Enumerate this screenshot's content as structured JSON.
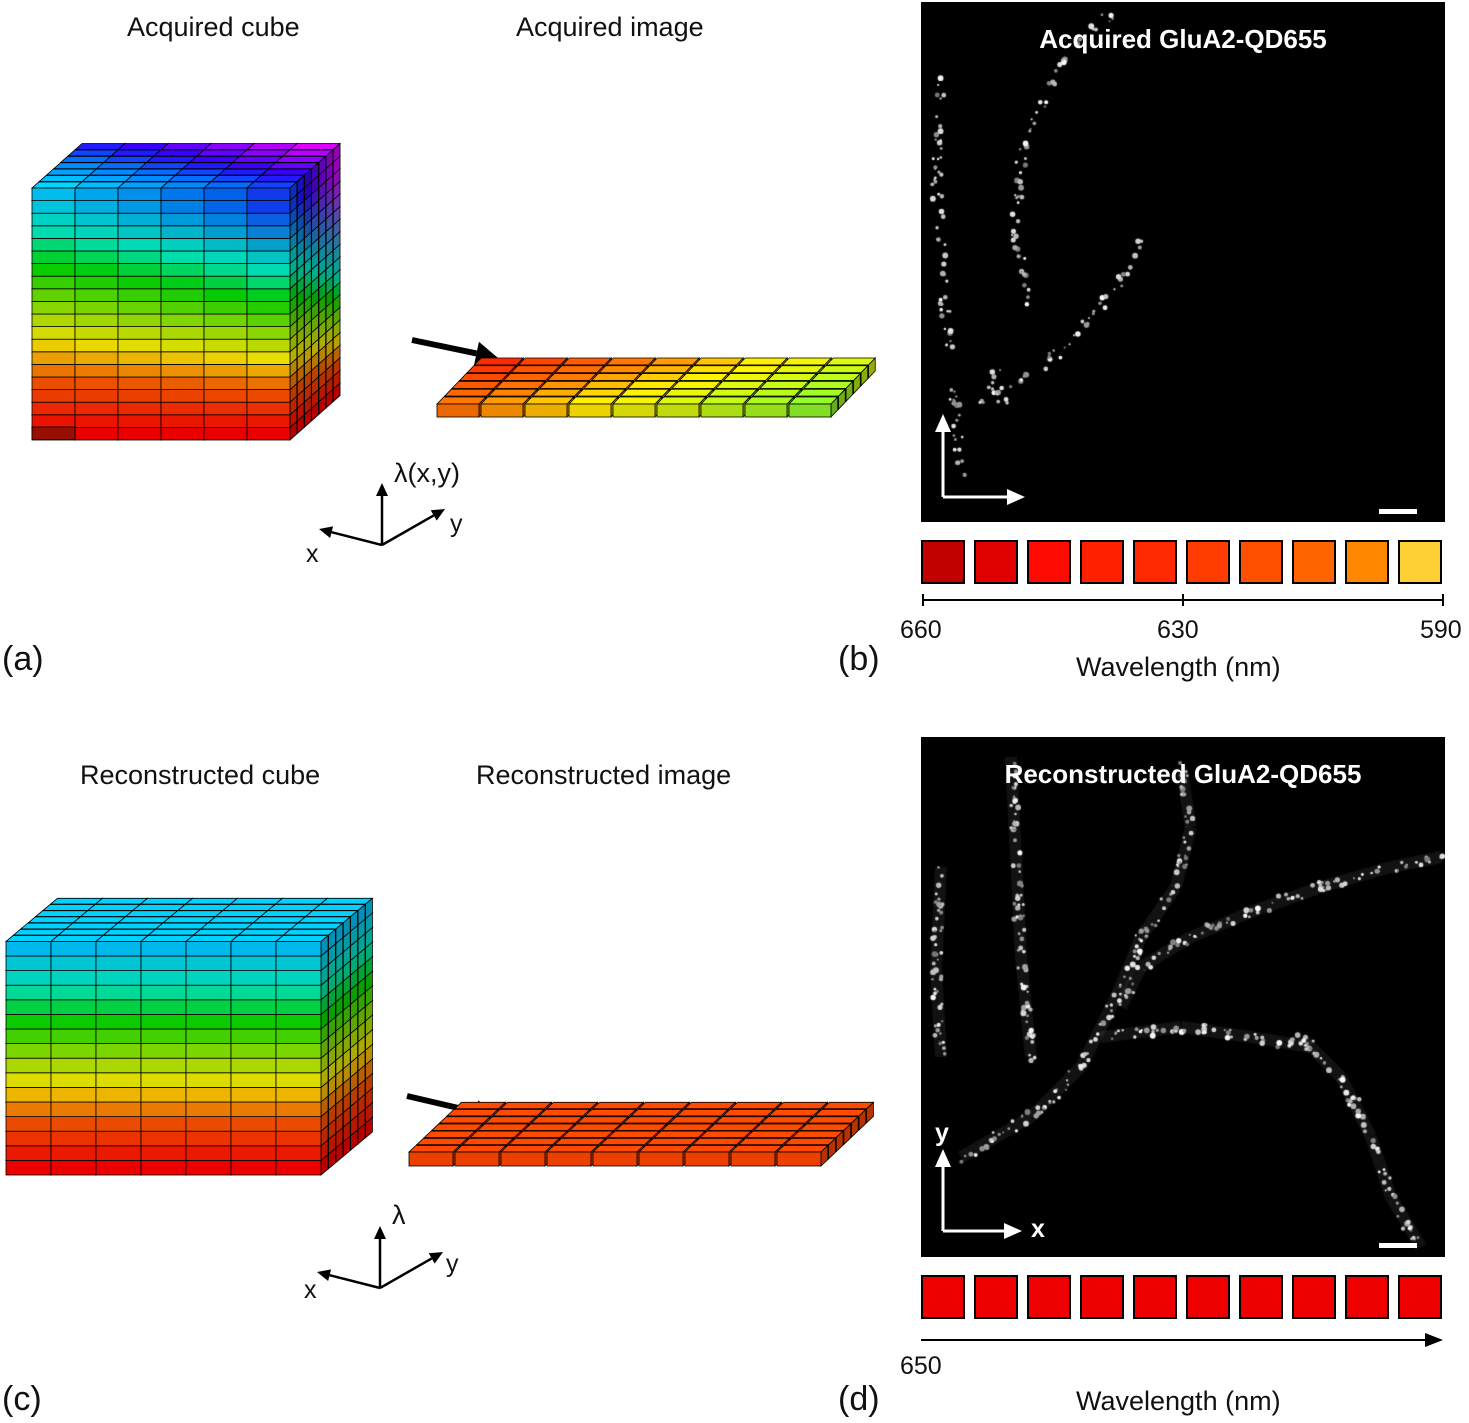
{
  "figure": {
    "a": {
      "label": "(a)",
      "cube_title": "Acquired cube",
      "image_title": "Acquired image",
      "axis_lambda": "λ(x,y)",
      "axis_x": "x",
      "axis_y": "y"
    },
    "b": {
      "label": "(b)",
      "title": "Acquired GluA2-QD655",
      "swatch_colors": [
        "#c30000",
        "#e00000",
        "#ff0a00",
        "#ff2000",
        "#ff2800",
        "#ff3c00",
        "#ff5000",
        "#ff6400",
        "#ff8800",
        "#ffd036"
      ],
      "ticks": [
        "660",
        "630",
        "590"
      ],
      "xlabel": "Wavelength (nm)"
    },
    "c": {
      "label": "(c)",
      "cube_title": "Reconstructed cube",
      "image_title": "Reconstructed image",
      "axis_lambda": "λ",
      "axis_x": "x",
      "axis_y": "y"
    },
    "d": {
      "label": "(d)",
      "title": "Reconstructed GluA2-QD655",
      "swatch_color": "#ee0000",
      "swatch_count": 10,
      "tick": "650",
      "xlabel": "Wavelength (nm)",
      "axis_x": "x",
      "axis_y": "y"
    }
  }
}
